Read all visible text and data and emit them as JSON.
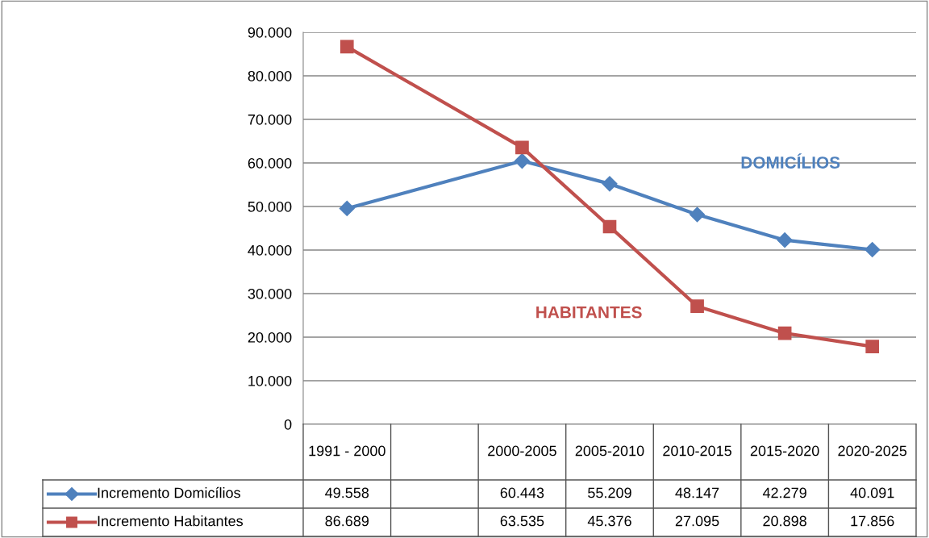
{
  "chart_data": {
    "type": "line",
    "categories": [
      "1991 - 2000",
      null,
      "2000-2005",
      "2005-2010",
      "2010-2015",
      "2015-2020",
      "2020-2025"
    ],
    "series": [
      {
        "name": "Incremento Domicílios",
        "color": "#4f81bd",
        "marker": "diamond",
        "values": [
          49558,
          null,
          60443,
          55209,
          48147,
          42279,
          40091
        ],
        "value_labels": [
          "49.558",
          null,
          "60.443",
          "55.209",
          "48.147",
          "42.279",
          "40.091"
        ]
      },
      {
        "name": "Incremento Habitantes",
        "color": "#c0504d",
        "marker": "square",
        "values": [
          86689,
          null,
          63535,
          45376,
          27095,
          20898,
          17856
        ],
        "value_labels": [
          "86.689",
          null,
          "63.535",
          "45.376",
          "27.095",
          "20.898",
          "17.856"
        ]
      }
    ],
    "ylim": [
      0,
      90000
    ],
    "yticks": [
      {
        "value": 0,
        "label": "0"
      },
      {
        "value": 10000,
        "label": "10.000"
      },
      {
        "value": 20000,
        "label": "20.000"
      },
      {
        "value": 30000,
        "label": "30.000"
      },
      {
        "value": 40000,
        "label": "40.000"
      },
      {
        "value": 50000,
        "label": "50.000"
      },
      {
        "value": 60000,
        "label": "60.000"
      },
      {
        "value": 70000,
        "label": "70.000"
      },
      {
        "value": 80000,
        "label": "80.000"
      },
      {
        "value": 90000,
        "label": "90.000"
      }
    ],
    "grid": "y",
    "legend": "bottom",
    "annotations": [
      "DOMICÍLIOS",
      "HABITANTES"
    ]
  }
}
